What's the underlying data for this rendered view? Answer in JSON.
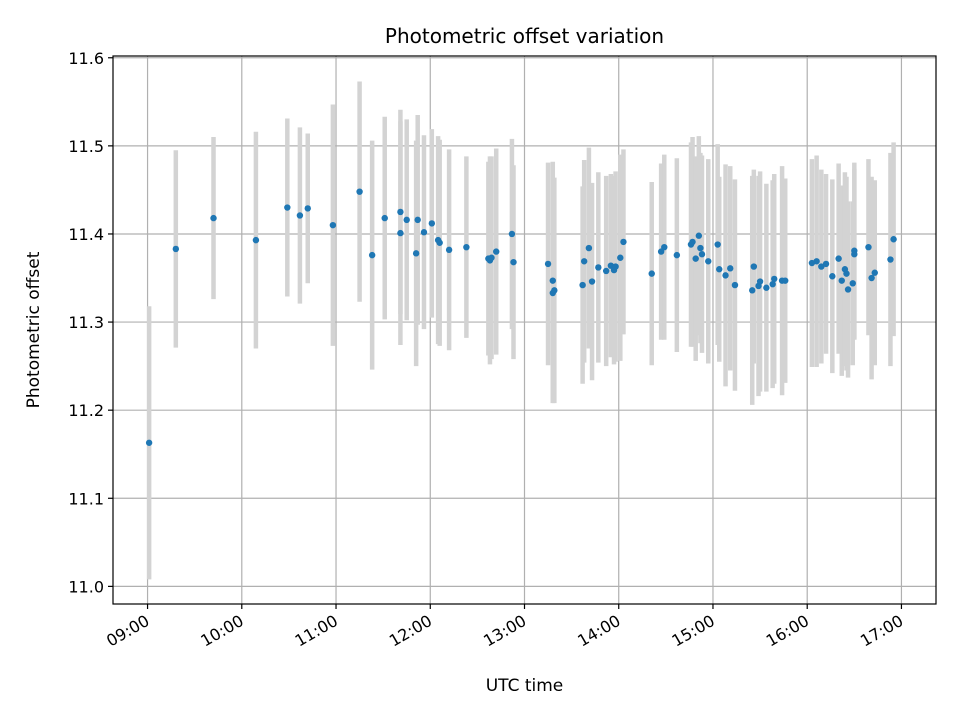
{
  "chart_data": {
    "type": "scatter",
    "title": "Photometric offset variation",
    "xlabel": "UTC time",
    "ylabel": "Photometric offset",
    "grid": true,
    "xlim": [
      "08:38",
      "17:22"
    ],
    "ylim": [
      10.98,
      11.602
    ],
    "x_ticks": [
      "09:00",
      "10:00",
      "11:00",
      "12:00",
      "13:00",
      "14:00",
      "15:00",
      "16:00",
      "17:00"
    ],
    "y_ticks": [
      "11.0",
      "11.1",
      "11.2",
      "11.3",
      "11.4",
      "11.5",
      "11.6"
    ],
    "colors": {
      "point": "#1f77b4",
      "errorbar": "#d3d3d3",
      "grid": "#b0b0b0"
    },
    "series": [
      {
        "x": [
          "09:01",
          "09:18",
          "09:42",
          "10:09",
          "10:29",
          "10:37",
          "10:42",
          "10:58",
          "11:15",
          "11:23",
          "11:31",
          "11:41",
          "11:41",
          "11:45",
          "11:51",
          "11:52",
          "11:56",
          "12:01",
          "12:05",
          "12:06",
          "12:12",
          "12:23",
          "12:37",
          "12:38",
          "12:39",
          "12:42",
          "12:52",
          "12:53",
          "13:15",
          "13:18",
          "13:18",
          "13:19",
          "13:37",
          "13:38",
          "13:41",
          "13:43",
          "13:47",
          "13:52",
          "13:55",
          "13:57",
          "13:58",
          "14:01",
          "14:03",
          "14:21",
          "14:27",
          "14:29",
          "14:37",
          "14:46",
          "14:47",
          "14:49",
          "14:51",
          "14:52",
          "14:53",
          "14:57",
          "15:03",
          "15:04",
          "15:08",
          "15:11",
          "15:14",
          "15:25",
          "15:26",
          "15:29",
          "15:30",
          "15:34",
          "15:38",
          "15:39",
          "15:44",
          "15:46",
          "16:03",
          "16:06",
          "16:09",
          "16:12",
          "16:16",
          "16:20",
          "16:22",
          "16:24",
          "16:25",
          "16:26",
          "16:29",
          "16:30",
          "16:30",
          "16:39",
          "16:41",
          "16:43",
          "16:53",
          "16:55"
        ],
        "y": [
          11.163,
          11.383,
          11.418,
          11.393,
          11.43,
          11.421,
          11.429,
          11.41,
          11.448,
          11.376,
          11.418,
          11.425,
          11.401,
          11.416,
          11.378,
          11.416,
          11.402,
          11.412,
          11.393,
          11.39,
          11.382,
          11.385,
          11.372,
          11.37,
          11.373,
          11.38,
          11.4,
          11.368,
          11.366,
          11.347,
          11.333,
          11.336,
          11.342,
          11.369,
          11.384,
          11.346,
          11.362,
          11.358,
          11.364,
          11.359,
          11.363,
          11.373,
          11.391,
          11.355,
          11.38,
          11.385,
          11.376,
          11.388,
          11.391,
          11.372,
          11.398,
          11.384,
          11.377,
          11.369,
          11.388,
          11.36,
          11.353,
          11.361,
          11.342,
          11.336,
          11.363,
          11.341,
          11.346,
          11.339,
          11.343,
          11.349,
          11.347,
          11.347,
          11.367,
          11.369,
          11.363,
          11.366,
          11.352,
          11.372,
          11.347,
          11.36,
          11.355,
          11.337,
          11.344,
          11.381,
          11.377,
          11.385,
          11.35,
          11.356,
          11.371,
          11.394
        ],
        "yerr": [
          0.155,
          0.112,
          0.092,
          0.123,
          0.101,
          0.1,
          0.085,
          0.137,
          0.125,
          0.13,
          0.115,
          0.116,
          0.127,
          0.114,
          0.128,
          0.119,
          0.11,
          0.107,
          0.118,
          0.117,
          0.114,
          0.103,
          0.11,
          0.118,
          0.115,
          0.117,
          0.108,
          0.11,
          0.115,
          0.135,
          0.125,
          0.128,
          0.112,
          0.115,
          0.114,
          0.112,
          0.108,
          0.108,
          0.104,
          0.107,
          0.108,
          0.117,
          0.105,
          0.104,
          0.1,
          0.105,
          0.11,
          0.116,
          0.119,
          0.116,
          0.113,
          0.108,
          0.112,
          0.116,
          0.114,
          0.105,
          0.126,
          0.116,
          0.12,
          0.13,
          0.11,
          0.125,
          0.125,
          0.118,
          0.118,
          0.119,
          0.13,
          0.116,
          0.118,
          0.12,
          0.11,
          0.102,
          0.11,
          0.108,
          0.108,
          0.11,
          0.11,
          0.1,
          0.093,
          0.1,
          0.097,
          0.1,
          0.115,
          0.105,
          0.121,
          0.11
        ]
      }
    ]
  }
}
